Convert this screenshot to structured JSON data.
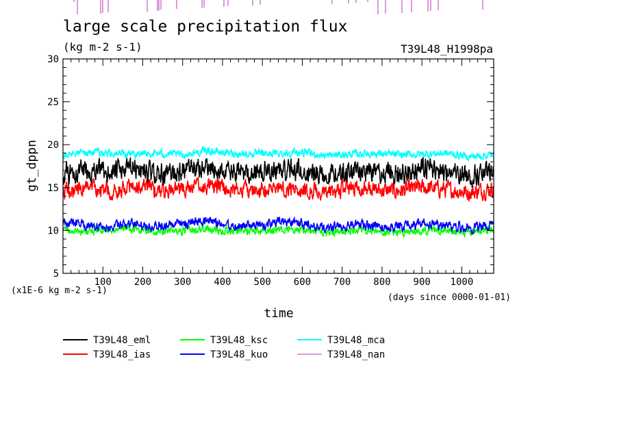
{
  "chart_data": {
    "type": "line",
    "title": "large scale precipitation flux",
    "units_label": "(kg m-2 s-1)",
    "experiment": "T39L48_H1998pa",
    "xlabel": "time",
    "ylabel": "gt_dppn",
    "y_scale_note": "(x1E-6 kg m-2 s-1)",
    "x_unit_note": "(days since 0000-01-01)",
    "xlim": [
      0,
      1080
    ],
    "ylim": [
      5,
      30
    ],
    "x_ticks": [
      100,
      200,
      300,
      400,
      500,
      600,
      700,
      800,
      900,
      1000
    ],
    "y_ticks": [
      5,
      10,
      15,
      20,
      25,
      30
    ],
    "legend_placement": "below",
    "series": [
      {
        "name": "T39L48_eml",
        "color": "#000000",
        "mean": 16.8,
        "amplitude": 1.5,
        "x": [
          0,
          60,
          120,
          180,
          240,
          300,
          360,
          420,
          480,
          540,
          600,
          660,
          720,
          780,
          840,
          900,
          960,
          1020,
          1080
        ],
        "values": [
          16.5,
          17.0,
          16.8,
          17.2,
          16.6,
          16.9,
          17.3,
          16.7,
          16.8,
          17.1,
          16.9,
          16.5,
          17.0,
          16.8,
          16.6,
          17.2,
          16.9,
          16.4,
          16.7
        ]
      },
      {
        "name": "T39L48_ias",
        "color": "#ff0000",
        "mean": 14.8,
        "amplitude": 1.2,
        "x": [
          0,
          60,
          120,
          180,
          240,
          300,
          360,
          420,
          480,
          540,
          600,
          660,
          720,
          780,
          840,
          900,
          960,
          1020,
          1080
        ],
        "values": [
          14.5,
          15.0,
          14.6,
          15.1,
          14.8,
          14.7,
          15.2,
          14.9,
          14.6,
          15.0,
          14.8,
          14.3,
          15.1,
          14.7,
          14.6,
          15.0,
          14.8,
          14.4,
          14.9
        ]
      },
      {
        "name": "T39L48_ksc",
        "color": "#00ff00",
        "mean": 10.0,
        "amplitude": 0.55,
        "x": [
          0,
          60,
          120,
          180,
          240,
          300,
          360,
          420,
          480,
          540,
          600,
          660,
          720,
          780,
          840,
          900,
          960,
          1020,
          1080
        ],
        "values": [
          10.0,
          9.9,
          10.1,
          10.2,
          9.8,
          10.0,
          10.1,
          9.9,
          10.0,
          10.1,
          10.0,
          9.8,
          10.0,
          9.9,
          9.7,
          10.0,
          10.1,
          9.8,
          10.0
        ]
      },
      {
        "name": "T39L48_kuo",
        "color": "#0000ff",
        "mean": 10.6,
        "amplitude": 0.7,
        "x": [
          0,
          60,
          120,
          180,
          240,
          300,
          360,
          420,
          480,
          540,
          600,
          660,
          720,
          780,
          840,
          900,
          960,
          1020,
          1080
        ],
        "values": [
          11.0,
          10.6,
          10.4,
          10.8,
          10.5,
          10.7,
          11.2,
          10.6,
          10.5,
          10.9,
          10.8,
          10.3,
          10.7,
          10.5,
          10.4,
          10.8,
          10.6,
          10.3,
          10.7
        ]
      },
      {
        "name": "T39L48_mca",
        "color": "#00ffff",
        "mean": 18.9,
        "amplitude": 0.55,
        "x": [
          0,
          60,
          120,
          180,
          240,
          300,
          360,
          420,
          480,
          540,
          600,
          660,
          720,
          780,
          840,
          900,
          960,
          1020,
          1080
        ],
        "values": [
          18.8,
          19.1,
          19.0,
          18.9,
          19.0,
          18.8,
          19.3,
          19.0,
          18.9,
          19.0,
          19.1,
          18.7,
          18.9,
          19.0,
          18.8,
          18.9,
          19.0,
          18.6,
          18.8
        ]
      },
      {
        "name": "T39L48_nan",
        "color": "#dd99dd",
        "mean": null,
        "amplitude": 0,
        "x": [],
        "values": []
      }
    ]
  }
}
